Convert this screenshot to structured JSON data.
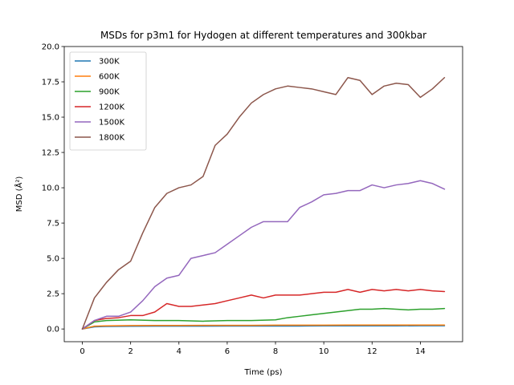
{
  "chart_data": {
    "type": "line",
    "title": "MSDs for p3m1 for Hydogen at different temperatures and 300kbar",
    "xlabel": "Time (ps)",
    "ylabel": "MSD (Å²)",
    "xlim": [
      -0.75,
      15.75
    ],
    "ylim": [
      -0.9,
      20.0
    ],
    "xticks": [
      0,
      2,
      4,
      6,
      8,
      10,
      12,
      14
    ],
    "xtick_labels": [
      "0",
      "2",
      "4",
      "6",
      "8",
      "10",
      "12",
      "14"
    ],
    "yticks": [
      0.0,
      2.5,
      5.0,
      7.5,
      10.0,
      12.5,
      15.0,
      17.5,
      20.0
    ],
    "ytick_labels": [
      "0.0",
      "2.5",
      "5.0",
      "7.5",
      "10.0",
      "12.5",
      "15.0",
      "17.5",
      "20.0"
    ],
    "grid": false,
    "legend_position": "top-left",
    "series": [
      {
        "name": "300K",
        "color": "#1f77b4",
        "x": [
          0,
          0.5,
          1,
          2,
          3,
          4,
          5,
          6,
          7,
          8,
          9,
          10,
          11,
          12,
          13,
          14,
          15
        ],
        "y": [
          0,
          0.15,
          0.18,
          0.19,
          0.2,
          0.2,
          0.2,
          0.21,
          0.21,
          0.21,
          0.21,
          0.22,
          0.22,
          0.22,
          0.22,
          0.23,
          0.23
        ]
      },
      {
        "name": "600K",
        "color": "#ff7f0e",
        "x": [
          0,
          0.5,
          1,
          2,
          3,
          4,
          5,
          6,
          7,
          8,
          9,
          10,
          11,
          12,
          13,
          14,
          15
        ],
        "y": [
          0,
          0.2,
          0.22,
          0.24,
          0.25,
          0.25,
          0.26,
          0.26,
          0.26,
          0.27,
          0.27,
          0.27,
          0.28,
          0.28,
          0.28,
          0.28,
          0.28
        ]
      },
      {
        "name": "900K",
        "color": "#2ca02c",
        "x": [
          0,
          0.5,
          1,
          2,
          3,
          4,
          5,
          6,
          7,
          8,
          8.5,
          9,
          9.5,
          10,
          10.5,
          11,
          11.5,
          12,
          12.5,
          13,
          13.5,
          14,
          14.5,
          15
        ],
        "y": [
          0,
          0.5,
          0.6,
          0.65,
          0.6,
          0.6,
          0.55,
          0.6,
          0.6,
          0.65,
          0.8,
          0.9,
          1.0,
          1.1,
          1.2,
          1.3,
          1.4,
          1.4,
          1.45,
          1.4,
          1.35,
          1.4,
          1.4,
          1.45
        ]
      },
      {
        "name": "1200K",
        "color": "#d62728",
        "x": [
          0,
          0.5,
          1,
          1.5,
          2,
          2.5,
          3,
          3.5,
          4,
          4.5,
          5,
          5.5,
          6,
          6.5,
          7,
          7.5,
          8,
          8.5,
          9,
          9.5,
          10,
          10.5,
          11,
          11.5,
          12,
          12.5,
          13,
          13.5,
          14,
          14.5,
          15
        ],
        "y": [
          0,
          0.6,
          0.75,
          0.8,
          0.95,
          0.95,
          1.2,
          1.8,
          1.6,
          1.6,
          1.7,
          1.8,
          2.0,
          2.2,
          2.4,
          2.2,
          2.4,
          2.4,
          2.4,
          2.5,
          2.6,
          2.6,
          2.8,
          2.6,
          2.8,
          2.7,
          2.8,
          2.7,
          2.8,
          2.7,
          2.65
        ]
      },
      {
        "name": "1500K",
        "color": "#9467bd",
        "x": [
          0,
          0.5,
          1,
          1.5,
          2,
          2.5,
          3,
          3.5,
          4,
          4.5,
          5,
          5.5,
          6,
          6.5,
          7,
          7.5,
          8,
          8.5,
          9,
          9.5,
          10,
          10.5,
          11,
          11.5,
          12,
          12.5,
          13,
          13.5,
          14,
          14.5,
          15
        ],
        "y": [
          0,
          0.6,
          0.9,
          0.9,
          1.2,
          2.0,
          3.0,
          3.6,
          3.8,
          5.0,
          5.2,
          5.4,
          6.0,
          6.6,
          7.2,
          7.6,
          7.6,
          7.6,
          8.6,
          9.0,
          9.5,
          9.6,
          9.8,
          9.8,
          10.2,
          10.0,
          10.2,
          10.3,
          10.5,
          10.3,
          9.9
        ]
      },
      {
        "name": "1800K",
        "color": "#8c564b",
        "x": [
          0,
          0.5,
          1,
          1.5,
          2,
          2.5,
          3,
          3.5,
          4,
          4.5,
          5,
          5.5,
          6,
          6.5,
          7,
          7.5,
          8,
          8.5,
          9,
          9.5,
          10,
          10.5,
          11,
          11.5,
          12,
          12.5,
          13,
          13.5,
          14,
          14.5,
          15
        ],
        "y": [
          0,
          2.2,
          3.3,
          4.2,
          4.8,
          6.8,
          8.6,
          9.6,
          10.0,
          10.2,
          10.8,
          13.0,
          13.8,
          15.0,
          16.0,
          16.6,
          17.0,
          17.2,
          17.1,
          17.0,
          16.8,
          16.6,
          17.8,
          17.6,
          16.6,
          17.2,
          17.4,
          17.3,
          16.4,
          17.0,
          17.8
        ]
      }
    ]
  }
}
